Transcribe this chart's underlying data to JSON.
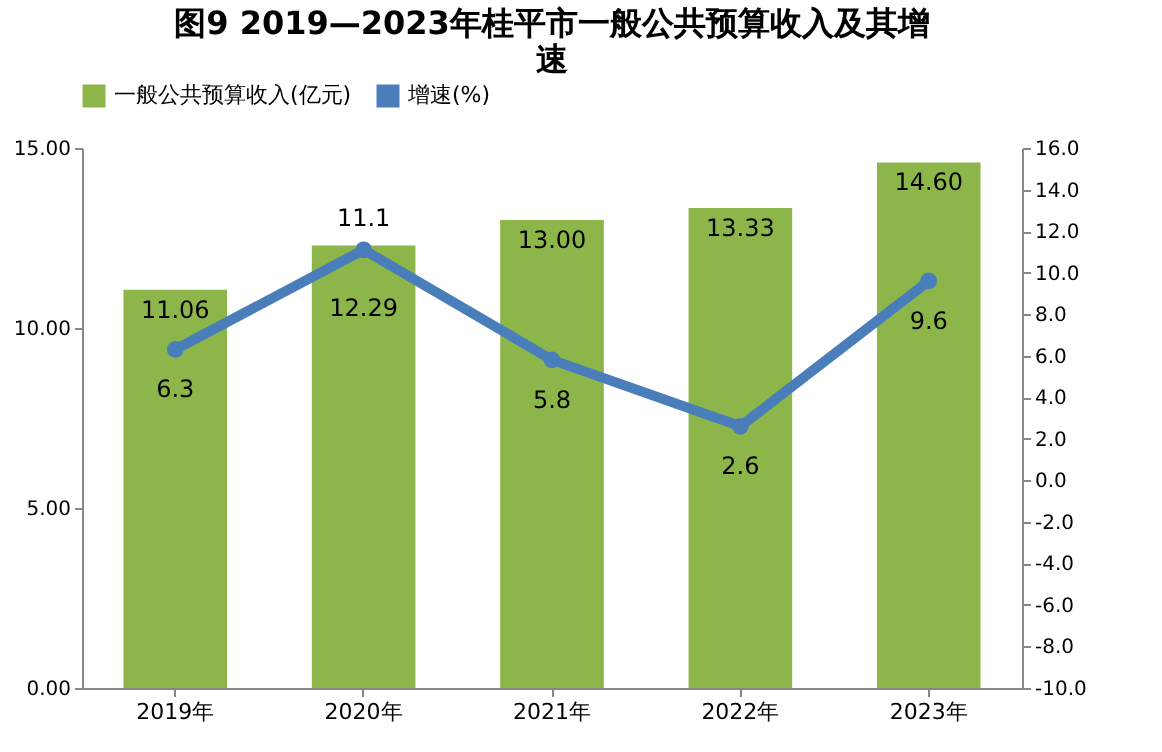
{
  "chart_data": {
    "type": "bar",
    "title": "图9 2019—2023年桂平市一般公共预算收入及其增速",
    "categories": [
      "2019年",
      "2020年",
      "2021年",
      "2022年",
      "2023年"
    ],
    "series": [
      {
        "name": "一般公共预算收入(亿元)",
        "type": "bar",
        "color": "#8db64a",
        "values": [
          11.06,
          12.29,
          13.0,
          13.33,
          14.6
        ],
        "value_labels": [
          "11.06",
          "12.29",
          "13.00",
          "13.33",
          "14.60"
        ]
      },
      {
        "name": "增速(%)",
        "type": "line",
        "axis": "y2",
        "color": "#4a7ebb",
        "values": [
          6.3,
          11.1,
          5.8,
          2.6,
          9.6
        ],
        "value_labels": [
          "6.3",
          "11.1",
          "5.8",
          "2.6",
          "9.6"
        ]
      }
    ],
    "ylim": [
      0,
      15
    ],
    "yticks": [
      {
        "value": 0,
        "label": "0.00"
      },
      {
        "value": 5,
        "label": "5.00"
      },
      {
        "value": 10,
        "label": "10.00"
      },
      {
        "value": 15,
        "label": "15.00"
      }
    ],
    "y2lim": [
      -10,
      16
    ],
    "y2ticks": [
      {
        "value": -10,
        "label": "-10.0"
      },
      {
        "value": -8,
        "label": "-8.0"
      },
      {
        "value": -6,
        "label": "-6.0"
      },
      {
        "value": -4,
        "label": "-4.0"
      },
      {
        "value": -2,
        "label": "-2.0"
      },
      {
        "value": 0,
        "label": "0.0"
      },
      {
        "value": 2,
        "label": "2.0"
      },
      {
        "value": 4,
        "label": "4.0"
      },
      {
        "value": 6,
        "label": "6.0"
      },
      {
        "value": 8,
        "label": "8.0"
      },
      {
        "value": 10,
        "label": "10.0"
      },
      {
        "value": 12,
        "label": "12.0"
      },
      {
        "value": 14,
        "label": "14.0"
      },
      {
        "value": 16,
        "label": "16.0"
      }
    ],
    "legend": "top",
    "marker": "circle",
    "line_style": "solid",
    "grid": false
  }
}
